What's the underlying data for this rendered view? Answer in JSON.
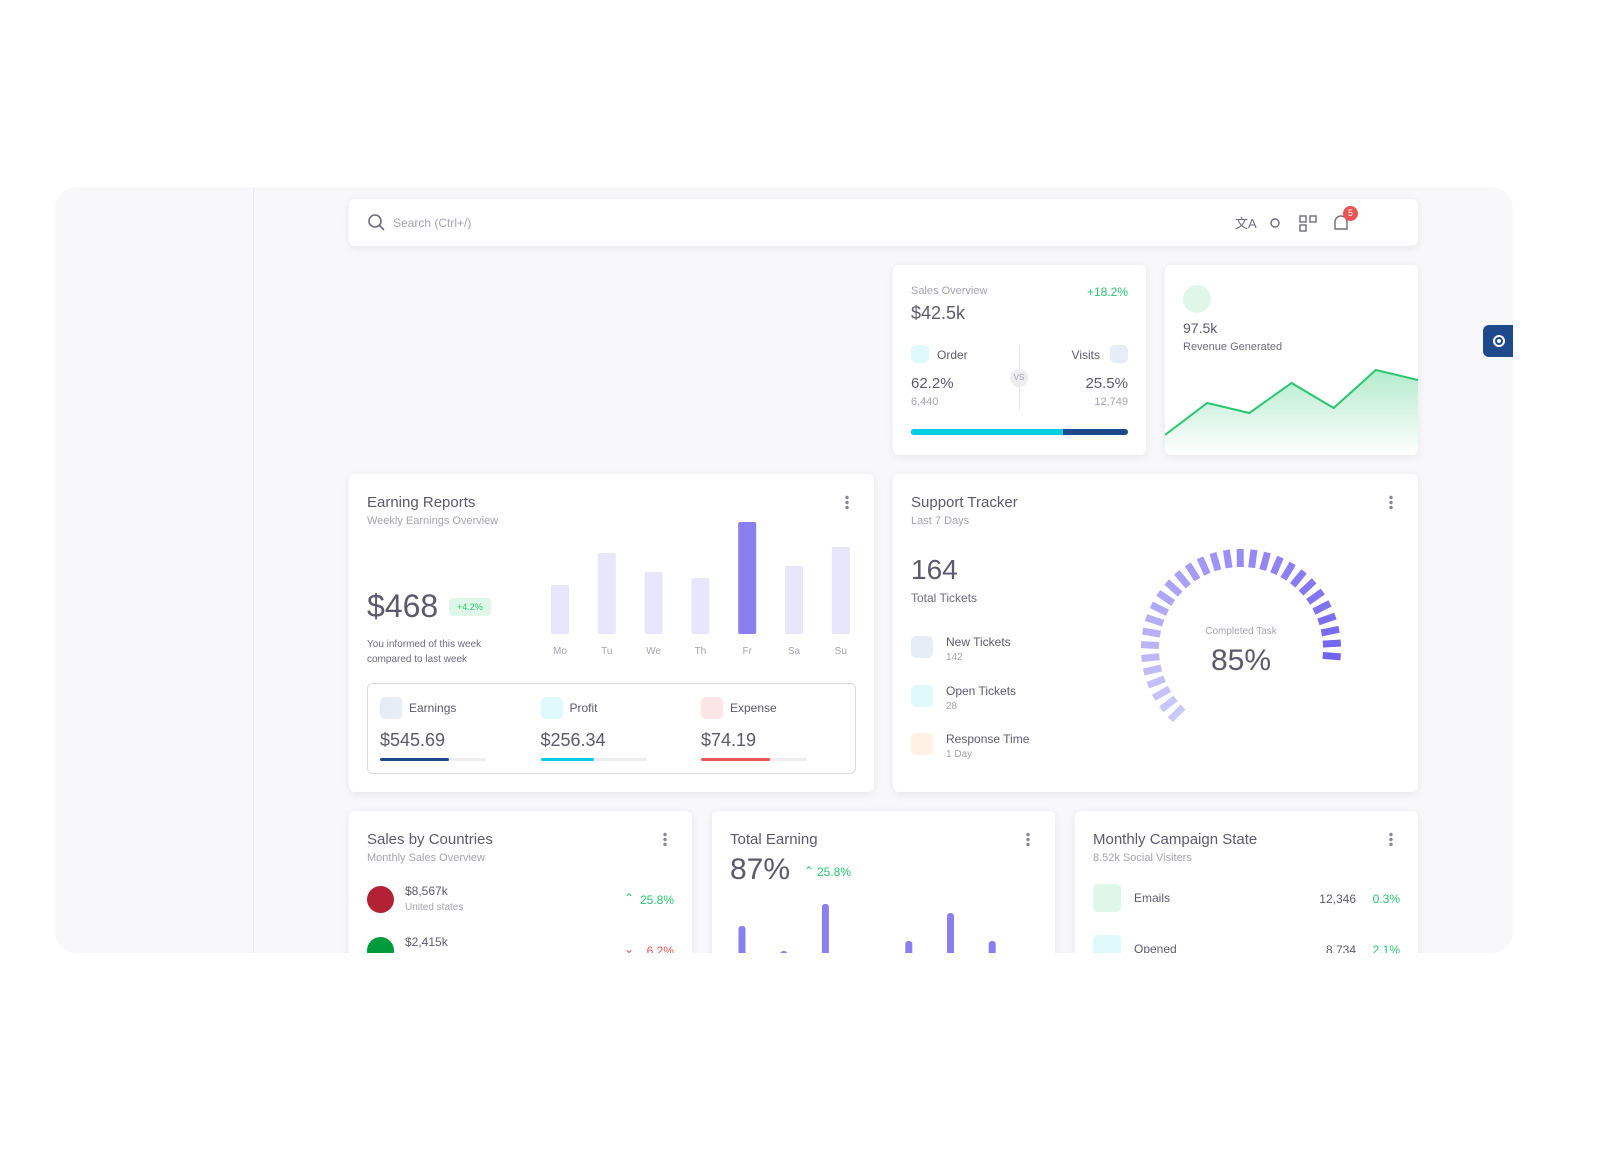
{
  "search": {
    "placeholder": "Search (Ctrl+/)",
    "notifications": "5"
  },
  "sales_overview": {
    "title": "Sales Overview",
    "change": "+18.2%",
    "value": "$42.5k",
    "vs": "VS",
    "order": {
      "label": "Order",
      "percent": "62.2%",
      "count": "6,440"
    },
    "visits": {
      "label": "Visits",
      "percent": "25.5%",
      "count": "12,749"
    },
    "order_share": 70
  },
  "revenue": {
    "value": "97.5k",
    "label": "Revenue Generated",
    "series": [
      20,
      52,
      42,
      72,
      47,
      85,
      75
    ]
  },
  "earning_reports": {
    "title": "Earning Reports",
    "subtitle": "Weekly Earnings Overview",
    "value": "$468",
    "change": "+4.2%",
    "note": "You informed of this week compared to last week",
    "days": [
      "Mo",
      "Tu",
      "We",
      "Th",
      "Fr",
      "Sa",
      "Su"
    ],
    "bars": [
      49,
      81,
      62,
      56,
      112,
      68,
      87
    ],
    "highlight": 4,
    "stats": [
      {
        "label": "Earnings",
        "value": "$545.69",
        "progress": 65,
        "color": "#1e4a8c"
      },
      {
        "label": "Profit",
        "value": "$256.34",
        "progress": 50,
        "color": "#00cfe8"
      },
      {
        "label": "Expense",
        "value": "$74.19",
        "progress": 65,
        "color": "#ea5455"
      }
    ]
  },
  "support_tracker": {
    "title": "Support Tracker",
    "subtitle": "Last 7 Days",
    "total": "164",
    "total_label": "Total Tickets",
    "items": [
      {
        "label": "New Tickets",
        "value": "142"
      },
      {
        "label": "Open Tickets",
        "value": "28"
      },
      {
        "label": "Response Time",
        "value": "1 Day"
      }
    ],
    "gauge": {
      "label": "Completed Task",
      "value": 85,
      "value_label": "85%"
    }
  },
  "sales_by_countries": {
    "title": "Sales by Countries",
    "subtitle": "Monthly Sales Overview",
    "rows": [
      {
        "amount": "$8,567k",
        "country": "United states",
        "change": "25.8%",
        "trend": "up"
      },
      {
        "amount": "$2,415k",
        "change": "6.2%",
        "trend": "down"
      }
    ]
  },
  "total_earning": {
    "title": "Total Earning",
    "value": "87%",
    "change": "25.8%",
    "bars": [
      35,
      10,
      57,
      null,
      20,
      48,
      20
    ]
  },
  "campaign": {
    "title": "Monthly Campaign State",
    "subtitle": "8.52k Social Visiters",
    "rows": [
      {
        "label": "Emails",
        "count": "12,346",
        "change": "0.3%"
      },
      {
        "label": "Opened",
        "count": "8,734",
        "change": "2.1%"
      }
    ]
  }
}
